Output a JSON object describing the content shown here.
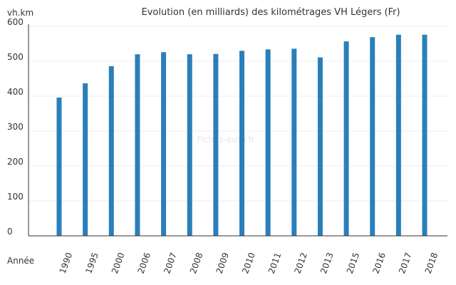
{
  "chart_data": {
    "type": "bar",
    "title": "Evolution (en milliards) des kilométrages VH Légers (Fr)",
    "ylabel": "vh.km",
    "xlabel": "Année",
    "watermark": "Fiches-auto.fr",
    "categories": [
      "1990",
      "1995",
      "2000",
      "2006",
      "2007",
      "2008",
      "2009",
      "2010",
      "2011",
      "2012",
      "2013",
      "2015",
      "2016",
      "2017",
      "2018"
    ],
    "values": [
      396,
      437,
      486,
      520,
      526,
      520,
      521,
      530,
      534,
      536,
      511,
      557,
      569,
      576,
      576
    ],
    "ylim": [
      0,
      600
    ],
    "yticks": [
      "0",
      "100",
      "200",
      "300",
      "400",
      "500",
      "600"
    ],
    "grid": true,
    "bar_color": "#2a7fba"
  }
}
